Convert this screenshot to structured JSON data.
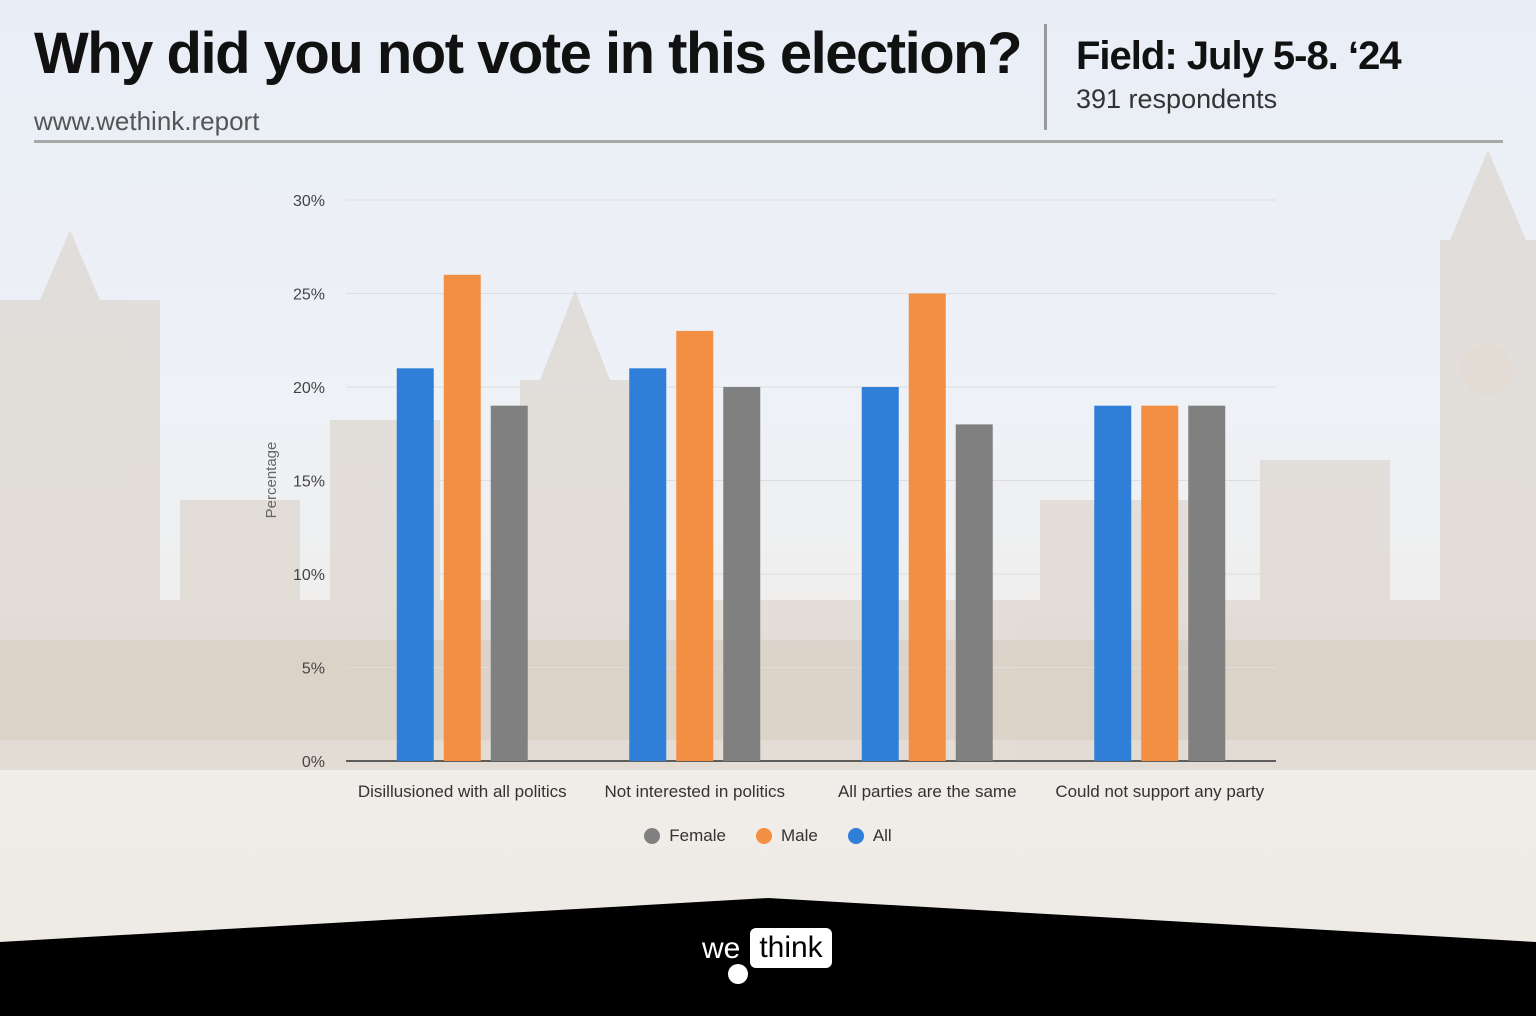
{
  "header": {
    "title": "Why did you not vote in this election?",
    "site_url": "www.wethink.report",
    "field_dates": "Field: July 5-8. ‘24",
    "respondents": "391 respondents"
  },
  "footer": {
    "logo_we": "we",
    "logo_think": "think"
  },
  "colors": {
    "All": "#2f7ed8",
    "Male": "#f28f43",
    "Female": "#808080",
    "footer_bg": "#000000"
  },
  "chart_data": {
    "type": "bar",
    "title": "",
    "xlabel": "",
    "ylabel": "Percentage",
    "ylim": [
      0,
      30
    ],
    "y_ticks": [
      "0%",
      "5%",
      "10%",
      "15%",
      "20%",
      "25%",
      "30%"
    ],
    "categories": [
      "Disillusioned with all politics",
      "Not interested in politics",
      "All parties are the same",
      "Could not support any party"
    ],
    "series": [
      {
        "name": "All",
        "values": [
          21,
          21,
          20,
          19
        ]
      },
      {
        "name": "Male",
        "values": [
          26,
          23,
          25,
          19
        ]
      },
      {
        "name": "Female",
        "values": [
          19,
          20,
          18,
          19
        ]
      }
    ],
    "legend": {
      "position": "bottom",
      "order": [
        "Female",
        "Male",
        "All"
      ]
    },
    "grid": true
  }
}
